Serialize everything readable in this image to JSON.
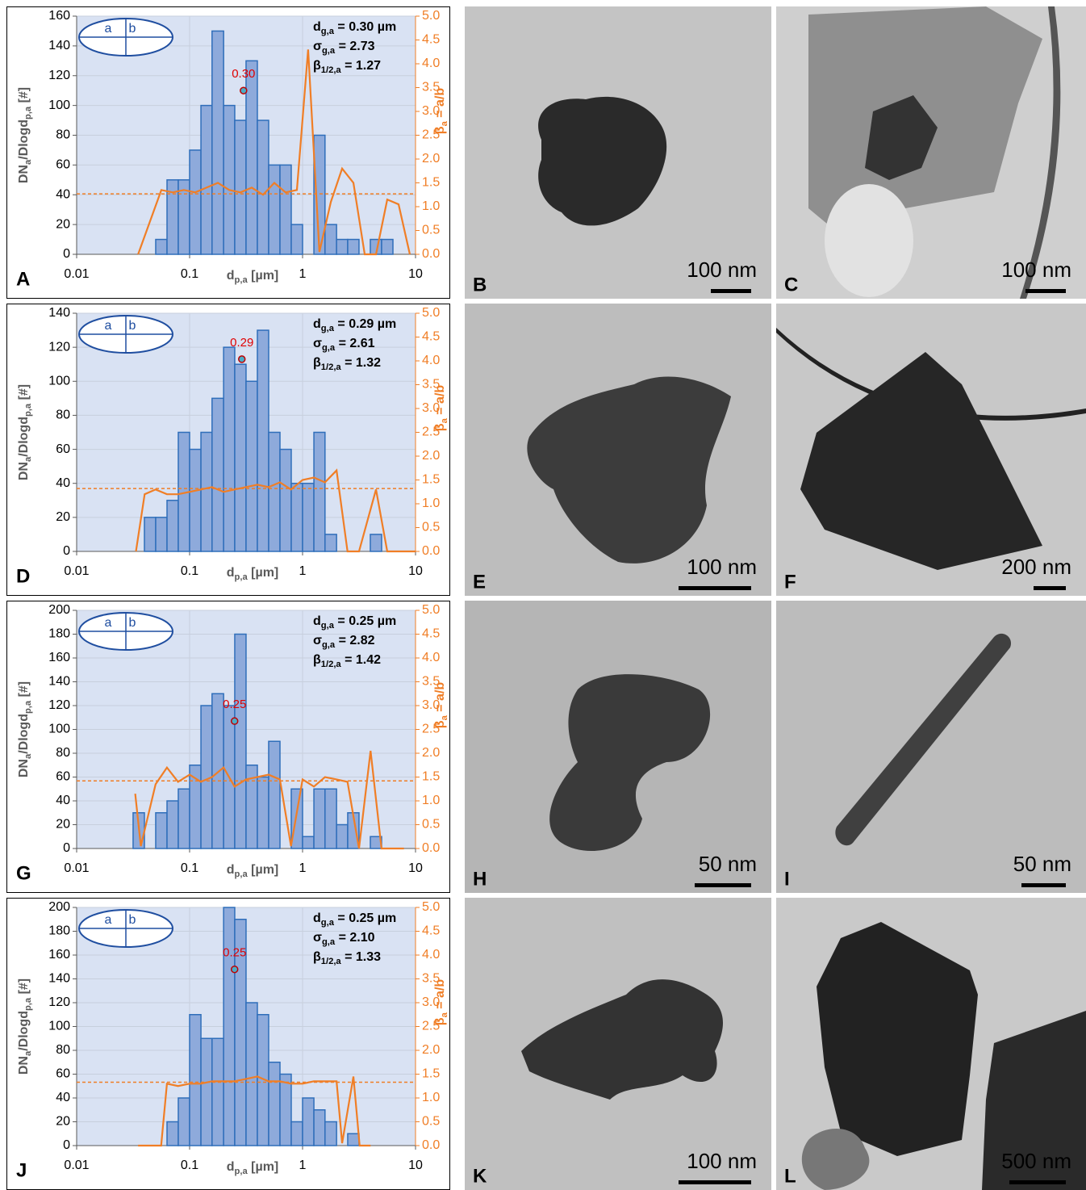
{
  "chart_data": [
    {
      "type": "histogram",
      "panel": "A",
      "xscale": "log",
      "xlim": [
        0.01,
        10
      ],
      "xticks": [
        0.01,
        0.1,
        1,
        10
      ],
      "ylim": [
        0,
        160
      ],
      "yticks": [
        0,
        20,
        40,
        60,
        80,
        100,
        120,
        140,
        160
      ],
      "y2lim": [
        0,
        5
      ],
      "y2ticks": [
        {
          "value": 0,
          "label": "0.0"
        },
        {
          "value": 0.5,
          "label": "0.5"
        },
        {
          "value": 1,
          "label": "1.0"
        },
        {
          "value": 1.5,
          "label": "1.5"
        },
        {
          "value": 2,
          "label": "2.0"
        },
        {
          "value": 2.5,
          "label": "2.5"
        },
        {
          "value": 3,
          "label": "3.0"
        },
        {
          "value": 3.5,
          "label": "3.5"
        },
        {
          "value": 4,
          "label": "4.0"
        },
        {
          "value": 4.5,
          "label": "4.5"
        },
        {
          "value": 5,
          "label": "5.0"
        }
      ],
      "grid": true,
      "color": "#8eaadb",
      "edgecolor": "#2f6eba",
      "bins": [
        0.0501,
        0.0631,
        0.0794,
        0.1,
        0.126,
        0.158,
        0.2,
        0.251,
        0.316,
        0.398,
        0.501,
        0.631,
        0.794,
        1,
        1.26,
        1.58,
        2,
        2.51,
        3.16,
        3.98,
        5.01,
        6.31
      ],
      "values": [
        10,
        50,
        50,
        70,
        100,
        150,
        100,
        90,
        130,
        90,
        60,
        60,
        20,
        0,
        80,
        20,
        10,
        10,
        0,
        10,
        10
      ],
      "series": [
        {
          "type": "line",
          "axis": "y2",
          "color": "#f07e26",
          "x": [
            0.035,
            0.0562,
            0.0708,
            0.0891,
            0.112,
            0.141,
            0.178,
            0.224,
            0.282,
            0.355,
            0.447,
            0.562,
            0.708,
            0.891,
            1.12,
            1.41,
            1.78,
            2.24,
            2.82,
            3.55,
            4.47,
            5.62,
            7.08,
            8.91
          ],
          "values": [
            0,
            1.35,
            1.3,
            1.35,
            1.3,
            1.4,
            1.5,
            1.35,
            1.3,
            1.4,
            1.25,
            1.5,
            1.3,
            1.35,
            4.3,
            0.05,
            1.1,
            1.8,
            1.5,
            0,
            0,
            1.15,
            1.05,
            0
          ]
        }
      ],
      "reference_line": {
        "axis": "y2",
        "value": 1.27,
        "style": "dashed"
      },
      "median_marker": {
        "x": 0.3,
        "y": 110,
        "label": "0.30"
      },
      "annotations": [
        [
          {
            "text": "d"
          },
          {
            "sub": "g,a"
          },
          {
            "text": " = 0.30 µm"
          }
        ],
        [
          {
            "text": "σ"
          },
          {
            "sub": "g,a"
          },
          {
            "text": " = 2.73"
          }
        ],
        [
          {
            "text": "β"
          },
          {
            "sub": "1/2,a"
          },
          {
            "text": " = 1.27"
          }
        ]
      ],
      "xlabel": [
        {
          "text": "d"
        },
        {
          "sub": "p,a"
        },
        {
          "text": " [µm]"
        }
      ],
      "ylabel": [
        {
          "text": "DN"
        },
        {
          "sub": "a"
        },
        {
          "text": "/Dlogd"
        },
        {
          "sub": "p,a"
        },
        {
          "text": " [#]"
        }
      ],
      "y2label": [
        {
          "text": "β"
        },
        {
          "sub": "a"
        },
        {
          "text": " = a/b"
        }
      ],
      "inset_labels": [
        "a",
        "b"
      ]
    },
    {
      "type": "histogram",
      "panel": "D",
      "xscale": "log",
      "xlim": [
        0.01,
        10
      ],
      "xticks": [
        0.01,
        0.1,
        1,
        10
      ],
      "ylim": [
        0,
        140
      ],
      "yticks": [
        0,
        20,
        40,
        60,
        80,
        100,
        120,
        140
      ],
      "y2lim": [
        0,
        5
      ],
      "y2ticks": [
        {
          "value": 0,
          "label": "0.0"
        },
        {
          "value": 0.5,
          "label": "0.5"
        },
        {
          "value": 1,
          "label": "1.0"
        },
        {
          "value": 1.5,
          "label": "1.5"
        },
        {
          "value": 2,
          "label": "2.0"
        },
        {
          "value": 2.5,
          "label": "2.5"
        },
        {
          "value": 3,
          "label": "3.0"
        },
        {
          "value": 3.5,
          "label": "3.5"
        },
        {
          "value": 4,
          "label": "4.0"
        },
        {
          "value": 4.5,
          "label": "4.5"
        },
        {
          "value": 5,
          "label": "5.0"
        }
      ],
      "grid": true,
      "color": "#8eaadb",
      "edgecolor": "#2f6eba",
      "bins": [
        0.0398,
        0.0501,
        0.0631,
        0.0794,
        0.1,
        0.126,
        0.158,
        0.2,
        0.251,
        0.316,
        0.398,
        0.501,
        0.631,
        0.794,
        1,
        1.26,
        1.58,
        2,
        2.51,
        3.16,
        3.98,
        5.01
      ],
      "values": [
        20,
        20,
        30,
        70,
        60,
        70,
        90,
        120,
        110,
        100,
        130,
        70,
        60,
        40,
        40,
        70,
        10,
        0,
        0,
        0,
        10
      ],
      "series": [
        {
          "type": "line",
          "axis": "y2",
          "color": "#f07e26",
          "x": [
            0.0335,
            0.04,
            0.05,
            0.063,
            0.079,
            0.1,
            0.126,
            0.158,
            0.2,
            0.25,
            0.316,
            0.398,
            0.5,
            0.63,
            0.79,
            1,
            1.26,
            1.58,
            2,
            2.5,
            3.16,
            4.47,
            5.62,
            10
          ],
          "values": [
            0,
            1.2,
            1.3,
            1.2,
            1.2,
            1.25,
            1.3,
            1.35,
            1.25,
            1.3,
            1.35,
            1.4,
            1.35,
            1.45,
            1.3,
            1.5,
            1.55,
            1.45,
            1.7,
            0,
            0,
            1.3,
            0,
            0
          ]
        }
      ],
      "reference_line": {
        "axis": "y2",
        "value": 1.32,
        "style": "dashed"
      },
      "median_marker": {
        "x": 0.29,
        "y": 113,
        "label": "0.29"
      },
      "annotations": [
        [
          {
            "text": "d"
          },
          {
            "sub": "g,a"
          },
          {
            "text": " = 0.29 µm"
          }
        ],
        [
          {
            "text": "σ"
          },
          {
            "sub": "g,a"
          },
          {
            "text": " = 2.61"
          }
        ],
        [
          {
            "text": "β"
          },
          {
            "sub": "1/2,a"
          },
          {
            "text": " = 1.32"
          }
        ]
      ],
      "xlabel": [
        {
          "text": "d"
        },
        {
          "sub": "p,a"
        },
        {
          "text": " [µm]"
        }
      ],
      "ylabel": [
        {
          "text": "DN"
        },
        {
          "sub": "a"
        },
        {
          "text": "/Dlogd"
        },
        {
          "sub": "p,a"
        },
        {
          "text": " [#]"
        }
      ],
      "y2label": [
        {
          "text": "β"
        },
        {
          "sub": "a"
        },
        {
          "text": " = a/b"
        }
      ],
      "inset_labels": [
        "a",
        "b"
      ]
    },
    {
      "type": "histogram",
      "panel": "G",
      "xscale": "log",
      "xlim": [
        0.01,
        10
      ],
      "xticks": [
        0.01,
        0.1,
        1,
        10
      ],
      "ylim": [
        0,
        200
      ],
      "yticks": [
        0,
        20,
        40,
        60,
        80,
        100,
        120,
        140,
        160,
        180,
        200
      ],
      "y2lim": [
        0,
        5
      ],
      "y2ticks": [
        {
          "value": 0,
          "label": "0.0"
        },
        {
          "value": 0.5,
          "label": "0.5"
        },
        {
          "value": 1,
          "label": "1.0"
        },
        {
          "value": 1.5,
          "label": "1.5"
        },
        {
          "value": 2,
          "label": "2.0"
        },
        {
          "value": 2.5,
          "label": "2.5"
        },
        {
          "value": 3,
          "label": "3.0"
        },
        {
          "value": 3.5,
          "label": "3.5"
        },
        {
          "value": 4,
          "label": "4.0"
        },
        {
          "value": 4.5,
          "label": "4.5"
        },
        {
          "value": 5,
          "label": "5.0"
        }
      ],
      "grid": true,
      "color": "#8eaadb",
      "edgecolor": "#2f6eba",
      "bins": [
        0.0316,
        0.0398,
        0.0501,
        0.0631,
        0.0794,
        0.1,
        0.126,
        0.158,
        0.2,
        0.251,
        0.316,
        0.398,
        0.501,
        0.631,
        0.794,
        1,
        1.26,
        1.58,
        2,
        2.51,
        3.16,
        3.98,
        5.01
      ],
      "values": [
        30,
        0,
        30,
        40,
        50,
        70,
        120,
        130,
        120,
        180,
        70,
        60,
        90,
        0,
        50,
        10,
        50,
        50,
        20,
        30,
        0,
        10
      ],
      "series": [
        {
          "type": "line",
          "axis": "y2",
          "color": "#f07e26",
          "x": [
            0.033,
            0.037,
            0.05,
            0.063,
            0.079,
            0.1,
            0.126,
            0.158,
            0.2,
            0.25,
            0.316,
            0.398,
            0.5,
            0.63,
            0.79,
            1,
            1.26,
            1.58,
            2,
            2.5,
            3.16,
            4,
            5,
            6.3,
            7.9
          ],
          "values": [
            1.15,
            0.05,
            1.35,
            1.7,
            1.4,
            1.55,
            1.4,
            1.5,
            1.7,
            1.3,
            1.45,
            1.5,
            1.55,
            1.45,
            0.05,
            1.45,
            1.3,
            1.5,
            1.45,
            1.4,
            0,
            2.05,
            0,
            0,
            0
          ]
        }
      ],
      "reference_line": {
        "axis": "y2",
        "value": 1.42,
        "style": "dashed"
      },
      "median_marker": {
        "x": 0.25,
        "y": 107,
        "label": "0.25"
      },
      "annotations": [
        [
          {
            "text": "d"
          },
          {
            "sub": "g,a"
          },
          {
            "text": " = 0.25 µm"
          }
        ],
        [
          {
            "text": "σ"
          },
          {
            "sub": "g,a"
          },
          {
            "text": " = 2.82"
          }
        ],
        [
          {
            "text": "β"
          },
          {
            "sub": "1/2,a"
          },
          {
            "text": " = 1.42"
          }
        ]
      ],
      "xlabel": [
        {
          "text": "d"
        },
        {
          "sub": "p,a"
        },
        {
          "text": " [µm]"
        }
      ],
      "ylabel": [
        {
          "text": "DN"
        },
        {
          "sub": "a"
        },
        {
          "text": "/Dlogd"
        },
        {
          "sub": "p,a"
        },
        {
          "text": " [#]"
        }
      ],
      "y2label": [
        {
          "text": "β"
        },
        {
          "sub": "a"
        },
        {
          "text": " = a/b"
        }
      ],
      "inset_labels": [
        "a",
        "b"
      ]
    },
    {
      "type": "histogram",
      "panel": "J",
      "xscale": "log",
      "xlim": [
        0.01,
        10
      ],
      "xticks": [
        0.01,
        0.1,
        1,
        10
      ],
      "ylim": [
        0,
        200
      ],
      "yticks": [
        0,
        20,
        40,
        60,
        80,
        100,
        120,
        140,
        160,
        180,
        200
      ],
      "y2lim": [
        0,
        5
      ],
      "y2ticks": [
        {
          "value": 0,
          "label": "0.0"
        },
        {
          "value": 0.5,
          "label": "0.5"
        },
        {
          "value": 1,
          "label": "1.0"
        },
        {
          "value": 1.5,
          "label": "1.5"
        },
        {
          "value": 2,
          "label": "2.0"
        },
        {
          "value": 2.5,
          "label": "2.5"
        },
        {
          "value": 3,
          "label": "3.0"
        },
        {
          "value": 3.5,
          "label": "3.5"
        },
        {
          "value": 4,
          "label": "4.0"
        },
        {
          "value": 4.5,
          "label": "4.5"
        },
        {
          "value": 5,
          "label": "5.0"
        }
      ],
      "grid": true,
      "color": "#8eaadb",
      "edgecolor": "#2f6eba",
      "bins": [
        0.0631,
        0.0794,
        0.1,
        0.126,
        0.158,
        0.2,
        0.251,
        0.316,
        0.398,
        0.501,
        0.631,
        0.794,
        1,
        1.26,
        1.58,
        2,
        2.51,
        3.16,
        3.98
      ],
      "values": [
        20,
        40,
        110,
        90,
        90,
        200,
        190,
        120,
        110,
        70,
        60,
        20,
        40,
        30,
        20,
        0,
        10,
        0
      ],
      "series": [
        {
          "type": "line",
          "axis": "y2",
          "color": "#f07e26",
          "x": [
            0.035,
            0.045,
            0.056,
            0.063,
            0.079,
            0.1,
            0.126,
            0.158,
            0.2,
            0.25,
            0.316,
            0.398,
            0.5,
            0.63,
            0.79,
            1,
            1.26,
            1.58,
            2,
            2.24,
            2.82,
            3.2,
            4
          ],
          "values": [
            0,
            0,
            0,
            1.3,
            1.25,
            1.3,
            1.3,
            1.35,
            1.35,
            1.35,
            1.4,
            1.45,
            1.35,
            1.35,
            1.3,
            1.3,
            1.35,
            1.35,
            1.35,
            0.05,
            1.45,
            0,
            0
          ]
        }
      ],
      "reference_line": {
        "axis": "y2",
        "value": 1.33,
        "style": "dashed"
      },
      "median_marker": {
        "x": 0.25,
        "y": 148,
        "label": "0.25"
      },
      "annotations": [
        [
          {
            "text": "d"
          },
          {
            "sub": "g,a"
          },
          {
            "text": " = 0.25 µm"
          }
        ],
        [
          {
            "text": "σ"
          },
          {
            "sub": "g,a"
          },
          {
            "text": " = 2.10"
          }
        ],
        [
          {
            "text": "β"
          },
          {
            "sub": "1/2,a"
          },
          {
            "text": " = 1.33"
          }
        ]
      ],
      "xlabel": [
        {
          "text": "d"
        },
        {
          "sub": "p,a"
        },
        {
          "text": " [µm]"
        }
      ],
      "ylabel": [
        {
          "text": "DN"
        },
        {
          "sub": "a"
        },
        {
          "text": "/Dlogd"
        },
        {
          "sub": "p,a"
        },
        {
          "text": " [#]"
        }
      ],
      "y2label": [
        {
          "text": "β"
        },
        {
          "sub": "a"
        },
        {
          "text": " = a/b"
        }
      ],
      "inset_labels": [
        "a",
        "b"
      ]
    }
  ],
  "panels": [
    {
      "label": "B",
      "scale_bar": "100 nm"
    },
    {
      "label": "C",
      "scale_bar": "100 nm"
    },
    {
      "label": "E",
      "scale_bar": "100 nm"
    },
    {
      "label": "F",
      "scale_bar": "200 nm"
    },
    {
      "label": "H",
      "scale_bar": "50 nm"
    },
    {
      "label": "I",
      "scale_bar": "50 nm"
    },
    {
      "label": "K",
      "scale_bar": "100 nm"
    },
    {
      "label": "L",
      "scale_bar": "500 nm"
    }
  ]
}
